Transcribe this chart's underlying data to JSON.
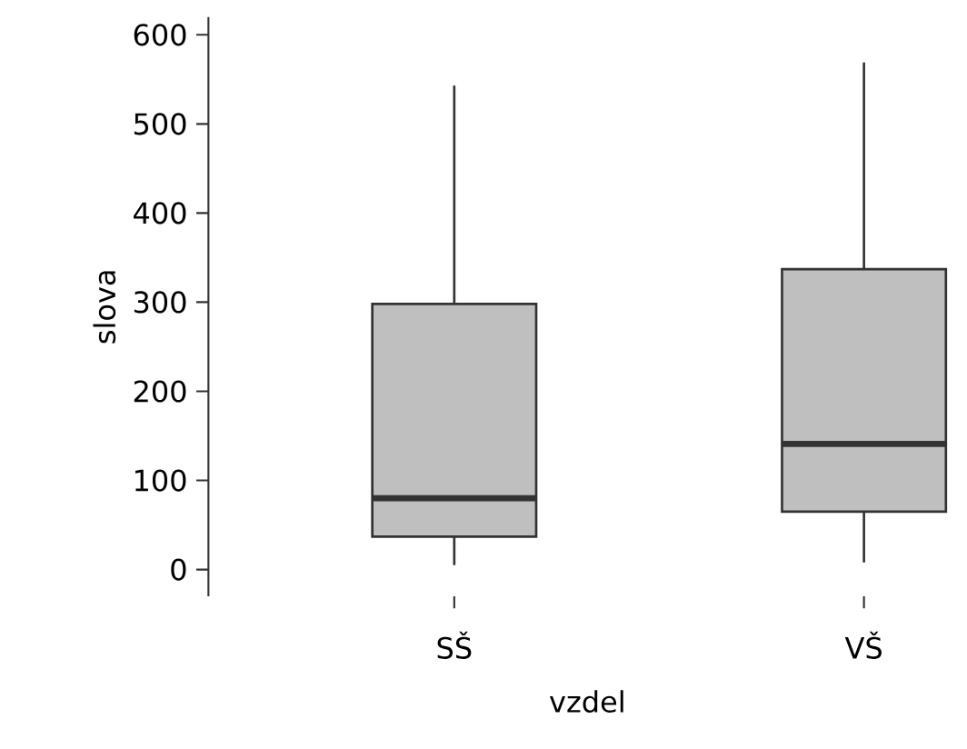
{
  "chart_data": {
    "type": "box",
    "xlabel": "vzdel",
    "ylabel": "slova",
    "categories": [
      "SŠ",
      "VŠ"
    ],
    "color": "#bfbfbf",
    "boxes": [
      {
        "low": 5,
        "q1": 37,
        "median": 80,
        "q3": 298,
        "high": 543
      },
      {
        "low": 8,
        "q1": 65,
        "median": 141,
        "q3": 337,
        "high": 569
      }
    ],
    "ylim": [
      -30,
      620
    ],
    "yticks": [
      0,
      100,
      200,
      300,
      400,
      500,
      600
    ],
    "grid": false
  }
}
